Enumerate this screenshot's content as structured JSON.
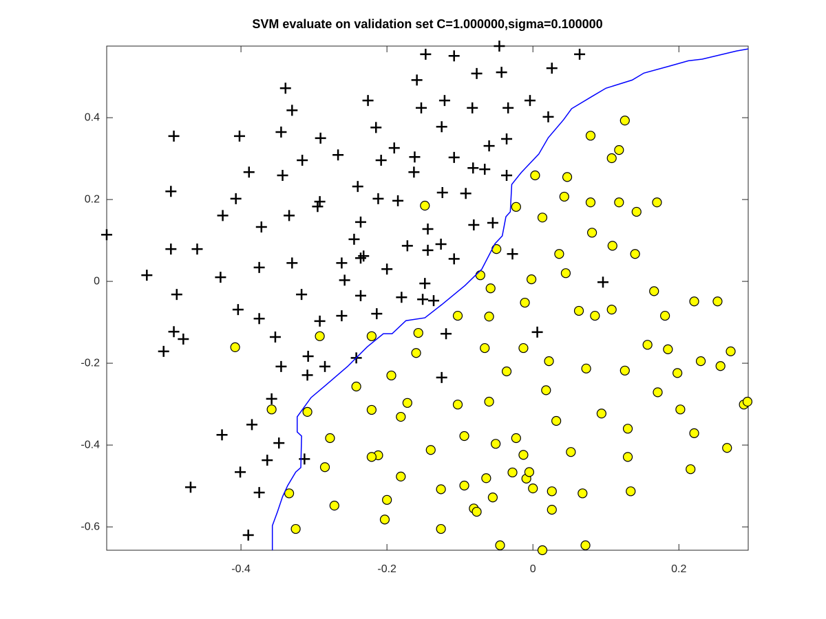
{
  "chart_data": {
    "type": "scatter",
    "title": "SVM evaluate on validation set C=1.000000,sigma=0.100000",
    "xlim": [
      -0.584,
      0.295
    ],
    "ylim": [
      -0.657,
      0.575
    ],
    "xticks": [
      -0.4,
      -0.2,
      0,
      0.2
    ],
    "yticks": [
      -0.6,
      -0.4,
      -0.2,
      0,
      0.2,
      0.4
    ],
    "series": [
      {
        "marker": "plus",
        "color": "#000000",
        "x": [
          -0.584,
          -0.492,
          -0.496,
          -0.496,
          -0.46,
          -0.529,
          -0.488,
          -0.492,
          -0.479,
          -0.506,
          -0.469,
          -0.425,
          -0.407,
          -0.402,
          -0.389,
          -0.372,
          -0.375,
          -0.428,
          -0.404,
          -0.375,
          -0.339,
          -0.33,
          -0.345,
          -0.343,
          -0.334,
          -0.33,
          -0.316,
          -0.291,
          -0.292,
          -0.295,
          -0.317,
          -0.292,
          -0.353,
          -0.345,
          -0.308,
          -0.309,
          -0.285,
          -0.358,
          -0.385,
          -0.426,
          -0.348,
          -0.364,
          -0.401,
          -0.375,
          -0.39,
          -0.313,
          -0.267,
          -0.262,
          -0.258,
          -0.262,
          -0.226,
          -0.215,
          -0.24,
          -0.236,
          -0.245,
          -0.236,
          -0.232,
          -0.236,
          -0.214,
          -0.242,
          -0.208,
          -0.212,
          -0.2,
          -0.19,
          -0.185,
          -0.18,
          -0.172,
          -0.159,
          -0.147,
          -0.153,
          -0.162,
          -0.163,
          -0.151,
          -0.148,
          -0.144,
          -0.144,
          -0.136,
          -0.121,
          -0.125,
          -0.124,
          -0.126,
          -0.119,
          -0.125,
          -0.108,
          -0.108,
          -0.108,
          -0.092,
          -0.083,
          -0.077,
          -0.082,
          -0.081,
          -0.066,
          -0.06,
          -0.055,
          -0.046,
          -0.043,
          -0.034,
          -0.036,
          -0.036,
          -0.028,
          -0.004,
          0.021,
          0.006,
          0.026,
          0.064,
          0.096
        ],
        "y": [
          0.114,
          0.355,
          0.22,
          0.079,
          0.079,
          0.015,
          -0.032,
          -0.123,
          -0.141,
          -0.171,
          -0.503,
          0.161,
          0.202,
          0.355,
          0.267,
          0.133,
          0.034,
          0.01,
          -0.069,
          -0.091,
          0.472,
          0.418,
          0.365,
          0.259,
          0.161,
          0.045,
          0.296,
          0.35,
          0.195,
          0.183,
          -0.032,
          -0.097,
          -0.136,
          -0.208,
          -0.183,
          -0.229,
          -0.208,
          -0.287,
          -0.35,
          -0.375,
          -0.395,
          -0.437,
          -0.466,
          -0.516,
          -0.62,
          -0.434,
          0.309,
          0.045,
          0.003,
          -0.084,
          0.442,
          0.376,
          0.232,
          0.145,
          0.103,
          0.057,
          0.062,
          -0.035,
          -0.079,
          -0.187,
          0.296,
          0.202,
          0.03,
          0.326,
          0.197,
          -0.039,
          0.087,
          0.492,
          0.555,
          0.424,
          0.304,
          0.267,
          -0.044,
          -0.005,
          0.128,
          0.076,
          -0.047,
          0.442,
          0.378,
          0.217,
          0.091,
          -0.128,
          -0.235,
          0.551,
          0.303,
          0.055,
          0.215,
          0.424,
          0.508,
          0.277,
          0.138,
          0.274,
          0.331,
          0.143,
          0.575,
          0.511,
          0.424,
          0.348,
          0.259,
          0.067,
          0.442,
          0.402,
          -0.124,
          0.521,
          0.555,
          -0.002
        ]
      },
      {
        "marker": "circle",
        "color": "#ffff00",
        "x": [
          -0.408,
          -0.292,
          -0.358,
          -0.309,
          -0.278,
          -0.285,
          -0.272,
          -0.334,
          -0.325,
          -0.242,
          -0.221,
          -0.221,
          -0.212,
          -0.221,
          -0.194,
          -0.2,
          -0.203,
          -0.181,
          -0.181,
          -0.172,
          -0.16,
          -0.157,
          -0.148,
          -0.14,
          -0.126,
          -0.126,
          -0.103,
          -0.103,
          -0.094,
          -0.094,
          -0.081,
          -0.077,
          -0.072,
          -0.066,
          -0.064,
          -0.06,
          -0.06,
          -0.058,
          -0.055,
          -0.051,
          -0.05,
          -0.045,
          -0.036,
          -0.028,
          -0.023,
          -0.023,
          -0.013,
          -0.013,
          -0.011,
          -0.009,
          -0.005,
          -0.002,
          0.0,
          0.003,
          0.013,
          0.013,
          0.018,
          0.022,
          0.026,
          0.026,
          0.032,
          0.036,
          0.043,
          0.045,
          0.047,
          0.052,
          0.063,
          0.068,
          0.072,
          0.073,
          0.079,
          0.079,
          0.081,
          0.085,
          0.094,
          0.108,
          0.108,
          0.109,
          0.118,
          0.118,
          0.126,
          0.126,
          0.13,
          0.13,
          0.134,
          0.14,
          0.142,
          0.166,
          0.17,
          0.171,
          0.157,
          0.181,
          0.185,
          0.198,
          0.202,
          0.216,
          0.221,
          0.221,
          0.23,
          0.253,
          0.257,
          0.266,
          0.271,
          0.289,
          0.294
        ],
        "y": [
          -0.161,
          -0.134,
          -0.313,
          -0.319,
          -0.383,
          -0.454,
          -0.548,
          -0.518,
          -0.605,
          -0.257,
          -0.314,
          -0.134,
          -0.425,
          -0.429,
          -0.23,
          -0.534,
          -0.582,
          -0.477,
          -0.331,
          -0.297,
          -0.175,
          -0.126,
          0.185,
          -0.412,
          -0.508,
          -0.605,
          -0.084,
          -0.301,
          -0.378,
          -0.499,
          -0.555,
          -0.563,
          0.015,
          -0.163,
          -0.481,
          -0.086,
          -0.294,
          -0.017,
          -0.528,
          -0.397,
          0.079,
          -0.645,
          -0.22,
          -0.467,
          0.182,
          -0.383,
          -0.424,
          -0.163,
          -0.052,
          -0.482,
          -0.466,
          0.005,
          -0.506,
          0.259,
          -0.657,
          0.156,
          -0.266,
          -0.195,
          -0.513,
          -0.558,
          -0.341,
          0.067,
          0.207,
          0.02,
          0.255,
          -0.417,
          -0.072,
          -0.518,
          -0.645,
          -0.213,
          0.356,
          0.193,
          0.119,
          -0.084,
          -0.323,
          -0.069,
          0.301,
          0.087,
          0.193,
          0.321,
          0.393,
          -0.218,
          -0.36,
          -0.429,
          -0.513,
          0.067,
          0.17,
          -0.024,
          0.193,
          -0.271,
          -0.155,
          -0.084,
          -0.166,
          -0.224,
          -0.313,
          -0.459,
          -0.371,
          -0.049,
          -0.195,
          -0.049,
          -0.207,
          -0.407,
          -0.171,
          -0.301,
          -0.294
        ]
      },
      {
        "marker": "line",
        "color": "#0000ff",
        "x": [
          -0.357,
          -0.357,
          -0.35,
          -0.343,
          -0.336,
          -0.325,
          -0.318,
          -0.317,
          -0.323,
          -0.323,
          -0.304,
          -0.284,
          -0.254,
          -0.227,
          -0.205,
          -0.193,
          -0.174,
          -0.148,
          -0.125,
          -0.093,
          -0.07,
          -0.052,
          -0.042,
          -0.037,
          -0.031,
          -0.029,
          -0.016,
          0.008,
          0.021,
          0.042,
          0.053,
          0.081,
          0.1,
          0.136,
          0.152,
          0.187,
          0.213,
          0.232,
          0.279,
          0.295
        ],
        "y": [
          -0.657,
          -0.597,
          -0.563,
          -0.526,
          -0.499,
          -0.466,
          -0.455,
          -0.378,
          -0.368,
          -0.331,
          -0.284,
          -0.254,
          -0.208,
          -0.16,
          -0.128,
          -0.128,
          -0.096,
          -0.089,
          -0.057,
          -0.01,
          0.03,
          0.092,
          0.111,
          0.158,
          0.17,
          0.237,
          0.266,
          0.311,
          0.351,
          0.395,
          0.422,
          0.452,
          0.472,
          0.492,
          0.509,
          0.526,
          0.539,
          0.543,
          0.563,
          0.568
        ]
      }
    ]
  }
}
